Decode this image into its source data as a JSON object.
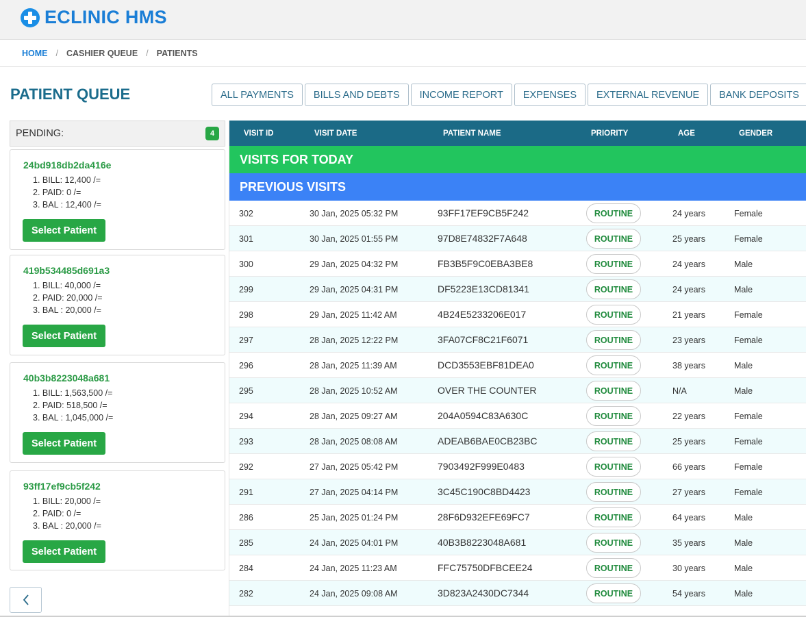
{
  "header": {
    "brand": "ECLINIC HMS",
    "brand_color": "#1a7ed6",
    "icon": "plus-circle-icon"
  },
  "breadcrumb": [
    "HOME",
    "CASHIER QUEUE",
    "PATIENTS"
  ],
  "page_title": "PATIENT QUEUE",
  "toolbar": [
    "ALL PAYMENTS",
    "BILLS AND DEBTS",
    "INCOME REPORT",
    "EXPENSES",
    "EXTERNAL REVENUE",
    "BANK DEPOSITS"
  ],
  "sidebar": {
    "pending_label": "PENDING:",
    "pending_count": "4",
    "cards": [
      {
        "id": "24bd918db2da416e",
        "lines": [
          "1. BILL: 12,400 /=",
          "2. PAID: 0 /=",
          "3. BAL : 12,400 /="
        ],
        "button": "Select Patient"
      },
      {
        "id": "419b534485d691a3",
        "lines": [
          "1. BILL: 40,000 /=",
          "2. PAID: 20,000 /=",
          "3. BAL : 20,000 /="
        ],
        "button": "Select Patient"
      },
      {
        "id": "40b3b8223048a681",
        "lines": [
          "1. BILL: 1,563,500 /=",
          "2. PAID: 518,500 /=",
          "3. BAL : 1,045,000 /="
        ],
        "button": "Select Patient"
      },
      {
        "id": "93ff17ef9cb5f242",
        "lines": [
          "1. BILL: 20,000 /=",
          "2. PAID: 0 /=",
          "3. BAL : 20,000 /="
        ],
        "button": "Select Patient"
      }
    ]
  },
  "table": {
    "columns": [
      "VISIT ID",
      "VISIT DATE",
      "PATIENT NAME",
      "PRIORITY",
      "AGE",
      "GENDER"
    ],
    "group_today": "VISITS FOR TODAY",
    "group_previous": "PREVIOUS VISITS",
    "rows": [
      {
        "id": "302",
        "date": "30 Jan, 2025 05:32 PM",
        "name": "93FF17EF9CB5F242",
        "priority": "ROUTINE",
        "age": "24 years",
        "gender": "Female"
      },
      {
        "id": "301",
        "date": "30 Jan, 2025 01:55 PM",
        "name": "97D8E74832F7A648",
        "priority": "ROUTINE",
        "age": "25 years",
        "gender": "Female"
      },
      {
        "id": "300",
        "date": "29 Jan, 2025 04:32 PM",
        "name": "FB3B5F9C0EBA3BE8",
        "priority": "ROUTINE",
        "age": "24 years",
        "gender": "Male"
      },
      {
        "id": "299",
        "date": "29 Jan, 2025 04:31 PM",
        "name": "DF5223E13CD81341",
        "priority": "ROUTINE",
        "age": "24 years",
        "gender": "Male"
      },
      {
        "id": "298",
        "date": "29 Jan, 2025 11:42 AM",
        "name": "4B24E5233206E017",
        "priority": "ROUTINE",
        "age": "21 years",
        "gender": "Female"
      },
      {
        "id": "297",
        "date": "28 Jan, 2025 12:22 PM",
        "name": "3FA07CF8C21F6071",
        "priority": "ROUTINE",
        "age": "23 years",
        "gender": "Female"
      },
      {
        "id": "296",
        "date": "28 Jan, 2025 11:39 AM",
        "name": "DCD3553EBF81DEA0",
        "priority": "ROUTINE",
        "age": "38 years",
        "gender": "Male"
      },
      {
        "id": "295",
        "date": "28 Jan, 2025 10:52 AM",
        "name": "OVER THE COUNTER",
        "priority": "ROUTINE",
        "age": "N/A",
        "gender": "Male"
      },
      {
        "id": "294",
        "date": "28 Jan, 2025 09:27 AM",
        "name": "204A0594C83A630C",
        "priority": "ROUTINE",
        "age": "22 years",
        "gender": "Female"
      },
      {
        "id": "293",
        "date": "28 Jan, 2025 08:08 AM",
        "name": "ADEAB6BAE0CB23BC",
        "priority": "ROUTINE",
        "age": "25 years",
        "gender": "Female"
      },
      {
        "id": "292",
        "date": "27 Jan, 2025 05:42 PM",
        "name": "7903492F999E0483",
        "priority": "ROUTINE",
        "age": "66 years",
        "gender": "Female"
      },
      {
        "id": "291",
        "date": "27 Jan, 2025 04:14 PM",
        "name": "3C45C190C8BD4423",
        "priority": "ROUTINE",
        "age": "27 years",
        "gender": "Female"
      },
      {
        "id": "286",
        "date": "25 Jan, 2025 01:24 PM",
        "name": "28F6D932EFE69FC7",
        "priority": "ROUTINE",
        "age": "64 years",
        "gender": "Male"
      },
      {
        "id": "285",
        "date": "24 Jan, 2025 04:01 PM",
        "name": "40B3B8223048A681",
        "priority": "ROUTINE",
        "age": "35 years",
        "gender": "Male"
      },
      {
        "id": "284",
        "date": "24 Jan, 2025 11:23 AM",
        "name": "FFC75750DFBCEE24",
        "priority": "ROUTINE",
        "age": "30 years",
        "gender": "Male"
      },
      {
        "id": "282",
        "date": "24 Jan, 2025 09:08 AM",
        "name": "3D823A2430DC7344",
        "priority": "ROUTINE",
        "age": "54 years",
        "gender": "Male"
      }
    ]
  },
  "colors": {
    "header_row": "#1b6a86",
    "today_row": "#22c55e",
    "previous_row": "#3b82f6",
    "select_button": "#28a745"
  }
}
